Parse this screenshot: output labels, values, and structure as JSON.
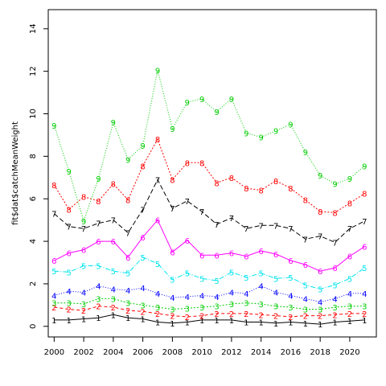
{
  "chart_data": {
    "type": "line",
    "title": "",
    "xlabel": "",
    "ylabel": "fit$dat$catchMeanWeight",
    "xlim": [
      1999.6,
      2021.8
    ],
    "ylim": [
      -0.5,
      14.9
    ],
    "x_ticks": [
      "2000",
      "2002",
      "2004",
      "2006",
      "2008",
      "2010",
      "2012",
      "2014",
      "2016",
      "2018",
      "2020"
    ],
    "y_ticks": [
      "0",
      "2",
      "4",
      "6",
      "8",
      "10",
      "12",
      "14"
    ],
    "x": [
      2000,
      2001,
      2002,
      2003,
      2004,
      2005,
      2006,
      2007,
      2008,
      2009,
      2010,
      2011,
      2012,
      2013,
      2014,
      2015,
      2016,
      2017,
      2018,
      2019,
      2020,
      2021
    ],
    "series": [
      {
        "marker": "1",
        "color": "#000000",
        "dash": "none",
        "values": [
          0.3,
          0.3,
          0.35,
          0.4,
          0.55,
          0.4,
          0.35,
          0.2,
          0.15,
          0.2,
          0.3,
          0.3,
          0.3,
          0.2,
          0.2,
          0.15,
          0.2,
          0.15,
          0.1,
          0.2,
          0.25,
          0.3
        ]
      },
      {
        "marker": "2",
        "color": "#ff0000",
        "dash": "4,3",
        "values": [
          0.9,
          0.8,
          0.75,
          0.95,
          0.9,
          0.75,
          0.7,
          0.6,
          0.5,
          0.45,
          0.5,
          0.6,
          0.6,
          0.6,
          0.55,
          0.5,
          0.45,
          0.5,
          0.5,
          0.55,
          0.6,
          0.6
        ]
      },
      {
        "marker": "3",
        "color": "#00cd00",
        "dash": "2,2",
        "values": [
          1.1,
          1.1,
          1.05,
          1.3,
          1.3,
          1.1,
          1.0,
          0.9,
          0.8,
          0.85,
          0.9,
          0.95,
          1.05,
          1.1,
          1.05,
          0.95,
          0.9,
          0.8,
          0.8,
          0.9,
          0.95,
          0.95
        ]
      },
      {
        "marker": "4",
        "color": "#0000ff",
        "dash": "1,2",
        "values": [
          1.45,
          1.65,
          1.6,
          1.9,
          1.75,
          1.7,
          1.8,
          1.55,
          1.35,
          1.4,
          1.45,
          1.4,
          1.6,
          1.55,
          1.9,
          1.6,
          1.45,
          1.3,
          1.15,
          1.3,
          1.55,
          1.55
        ]
      },
      {
        "marker": "5",
        "color": "#00e5ee",
        "dash": "6,2,1,2",
        "values": [
          2.6,
          2.55,
          2.85,
          2.85,
          2.6,
          2.5,
          3.25,
          2.95,
          2.2,
          2.5,
          2.25,
          2.15,
          2.55,
          2.3,
          2.5,
          2.25,
          2.3,
          1.95,
          1.75,
          1.95,
          2.25,
          2.75
        ]
      },
      {
        "marker": "6",
        "color": "#ff00ff",
        "dash": "none",
        "values": [
          3.1,
          3.45,
          3.6,
          4.0,
          4.0,
          3.25,
          4.2,
          5.0,
          3.5,
          4.05,
          3.35,
          3.35,
          3.45,
          3.3,
          3.55,
          3.4,
          3.1,
          2.9,
          2.6,
          2.75,
          3.3,
          3.75
        ]
      },
      {
        "marker": "7",
        "color": "#000000",
        "dash": "6,3",
        "values": [
          5.3,
          4.7,
          4.6,
          4.85,
          5.0,
          4.4,
          5.5,
          6.9,
          5.55,
          5.9,
          5.4,
          4.8,
          5.1,
          4.6,
          4.75,
          4.75,
          4.6,
          4.1,
          4.25,
          3.95,
          4.6,
          4.95
        ]
      },
      {
        "marker": "8",
        "color": "#ff0000",
        "dash": "2,2",
        "values": [
          6.65,
          5.5,
          6.1,
          5.9,
          6.7,
          5.95,
          7.55,
          8.8,
          6.9,
          7.7,
          7.7,
          6.75,
          7.0,
          6.5,
          6.4,
          6.85,
          6.5,
          5.95,
          5.4,
          5.35,
          5.8,
          6.25
        ]
      },
      {
        "marker": "9",
        "color": "#00cd00",
        "dash": "1,2",
        "values": [
          9.45,
          7.3,
          4.95,
          6.95,
          9.6,
          7.85,
          8.5,
          12.05,
          9.3,
          10.55,
          10.7,
          10.1,
          10.7,
          9.1,
          8.9,
          9.2,
          9.5,
          8.2,
          7.1,
          6.7,
          6.95,
          7.55
        ]
      }
    ]
  }
}
